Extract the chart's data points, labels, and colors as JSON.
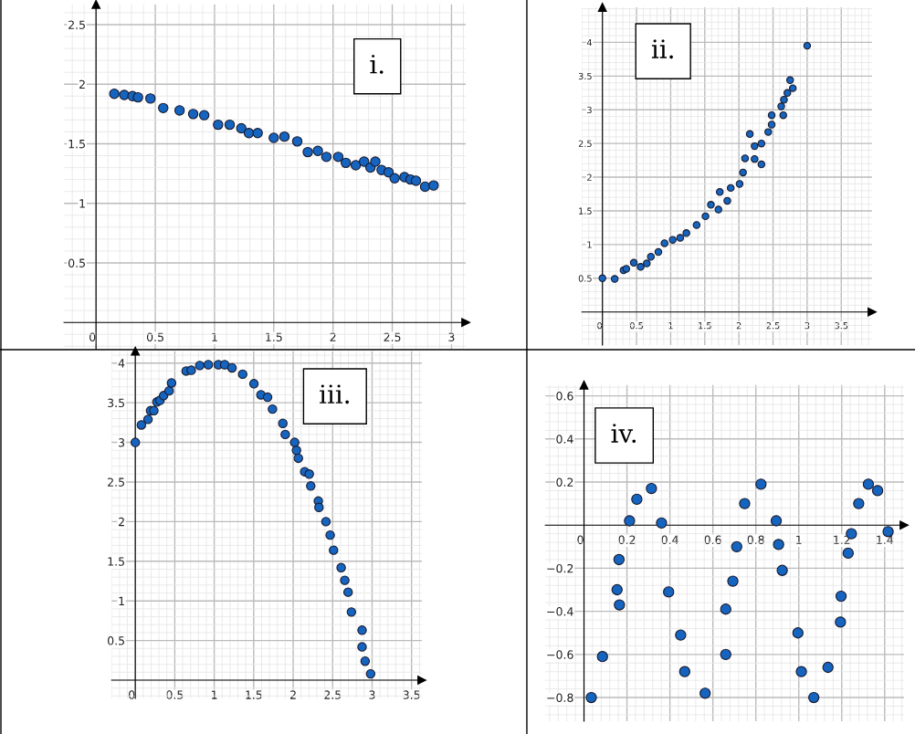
{
  "chart_data": [
    {
      "type": "scatter",
      "title": "i.",
      "marker": "circle",
      "grid": true,
      "color": "#1565c0",
      "xlim": [
        -0.27,
        3.12
      ],
      "ylim": [
        -0.22,
        2.67
      ],
      "xticks": [
        0,
        0.5,
        1,
        1.5,
        2,
        2.5,
        3
      ],
      "yticks": [
        0.5,
        1,
        1.5,
        2,
        2.5
      ],
      "x": [
        0.154,
        0.238,
        0.308,
        0.354,
        0.459,
        0.567,
        0.705,
        0.82,
        0.913,
        1.03,
        1.128,
        1.226,
        1.29,
        1.364,
        1.5,
        1.59,
        1.698,
        1.787,
        1.872,
        1.944,
        2.044,
        2.108,
        2.192,
        2.262,
        2.316,
        2.357,
        2.41,
        2.469,
        2.52,
        2.603,
        2.654,
        2.7,
        2.777,
        2.849
      ],
      "values": [
        1.92,
        1.91,
        1.9,
        1.89,
        1.88,
        1.8,
        1.78,
        1.75,
        1.74,
        1.66,
        1.66,
        1.63,
        1.59,
        1.59,
        1.55,
        1.56,
        1.52,
        1.43,
        1.44,
        1.39,
        1.39,
        1.34,
        1.32,
        1.35,
        1.3,
        1.35,
        1.28,
        1.26,
        1.21,
        1.22,
        1.2,
        1.19,
        1.14,
        1.15
      ]
    },
    {
      "type": "scatter",
      "title": "ii.",
      "marker": "circle",
      "grid": true,
      "color": "#1565c0",
      "xlim": [
        -0.3,
        3.95
      ],
      "ylim": [
        -0.49,
        4.52
      ],
      "xticks": [
        0,
        0.5,
        1,
        1.5,
        2,
        2.5,
        3,
        3.5
      ],
      "yticks": [
        0.5,
        1,
        1.5,
        2,
        2.5,
        3,
        3.5,
        4
      ],
      "x": [
        0,
        0.18,
        0.31,
        0.35,
        0.46,
        0.56,
        0.65,
        0.71,
        0.82,
        0.91,
        1.03,
        1.14,
        1.23,
        1.38,
        1.51,
        1.59,
        1.7,
        1.72,
        1.83,
        1.88,
        2.01,
        2.06,
        2.09,
        2.16,
        2.23,
        2.23,
        2.33,
        2.33,
        2.43,
        2.48,
        2.48,
        2.62,
        2.65,
        2.66,
        2.71,
        2.75,
        2.79,
        3.0
      ],
      "values": [
        0.5,
        0.49,
        0.62,
        0.64,
        0.73,
        0.67,
        0.72,
        0.82,
        0.89,
        1.02,
        1.07,
        1.1,
        1.17,
        1.29,
        1.42,
        1.59,
        1.52,
        1.78,
        1.65,
        1.84,
        1.9,
        2.07,
        2.28,
        2.64,
        2.46,
        2.27,
        2.5,
        2.19,
        2.67,
        2.78,
        2.92,
        3.05,
        2.92,
        3.15,
        3.25,
        3.44,
        3.32,
        3.95
      ]
    },
    {
      "type": "scatter",
      "title": "iii.",
      "marker": "circle",
      "grid": true,
      "color": "#1565c0",
      "xlim": [
        -0.3,
        3.63
      ],
      "ylim": [
        -0.23,
        4.15
      ],
      "xticks": [
        0,
        0.5,
        1,
        1.5,
        2,
        2.5,
        3,
        3.5
      ],
      "yticks": [
        0.5,
        1,
        1.5,
        2,
        2.5,
        3,
        3.5,
        4
      ],
      "x": [
        0,
        0.077,
        0.161,
        0.193,
        0.235,
        0.274,
        0.312,
        0.359,
        0.428,
        0.459,
        0.644,
        0.709,
        0.817,
        0.925,
        1.052,
        1.133,
        1.225,
        1.36,
        1.503,
        1.592,
        1.676,
        1.738,
        1.869,
        1.9,
        2.019,
        2.042,
        2.066,
        2.146,
        2.204,
        2.223,
        2.319,
        2.327,
        2.415,
        2.469,
        2.512,
        2.608,
        2.654,
        2.696,
        2.738,
        2.873,
        2.873,
        2.912,
        2.981
      ],
      "values": [
        3.0,
        3.22,
        3.29,
        3.4,
        3.4,
        3.51,
        3.53,
        3.59,
        3.65,
        3.75,
        3.9,
        3.91,
        3.97,
        3.98,
        3.98,
        3.98,
        3.94,
        3.86,
        3.74,
        3.6,
        3.57,
        3.42,
        3.24,
        3.1,
        3.0,
        2.9,
        2.8,
        2.63,
        2.6,
        2.45,
        2.26,
        2.18,
        2.0,
        1.83,
        1.64,
        1.42,
        1.26,
        1.11,
        0.86,
        0.63,
        0.42,
        0.24,
        0.08
      ]
    },
    {
      "type": "scatter",
      "title": "iv.",
      "marker": "circle",
      "grid": true,
      "color": "#1565c0",
      "xlim": [
        -0.18,
        1.49
      ],
      "ylim": [
        -0.91,
        0.65
      ],
      "xticks": [
        0,
        0.2,
        0.4,
        0.6,
        0.8,
        1,
        1.2,
        1.4
      ],
      "yticks": [
        {
          "value": -0.8,
          "label": "−0.8"
        },
        {
          "value": -0.6,
          "label": "−0.6"
        },
        {
          "value": -0.4,
          "label": "−0.4"
        },
        {
          "value": -0.2,
          "label": "−0.2"
        },
        0.2,
        0.4,
        0.6
      ],
      "x": [
        0.034,
        0.086,
        0.163,
        0.154,
        0.165,
        0.212,
        0.246,
        0.314,
        0.361,
        0.394,
        0.45,
        0.469,
        0.564,
        0.66,
        0.66,
        0.693,
        0.711,
        0.748,
        0.824,
        0.895,
        0.906,
        0.923,
        0.996,
        1.012,
        1.07,
        1.136,
        1.194,
        1.197,
        1.23,
        1.245,
        1.279,
        1.324,
        1.367,
        1.416
      ],
      "values": [
        -0.8,
        -0.61,
        -0.16,
        -0.3,
        -0.37,
        0.02,
        0.12,
        0.17,
        0.01,
        -0.31,
        -0.51,
        -0.68,
        -0.78,
        -0.6,
        -0.39,
        -0.26,
        -0.1,
        0.1,
        0.19,
        0.02,
        -0.09,
        -0.21,
        -0.5,
        -0.68,
        -0.8,
        -0.66,
        -0.45,
        -0.33,
        -0.13,
        -0.04,
        0.1,
        0.19,
        0.16,
        -0.03
      ]
    }
  ]
}
